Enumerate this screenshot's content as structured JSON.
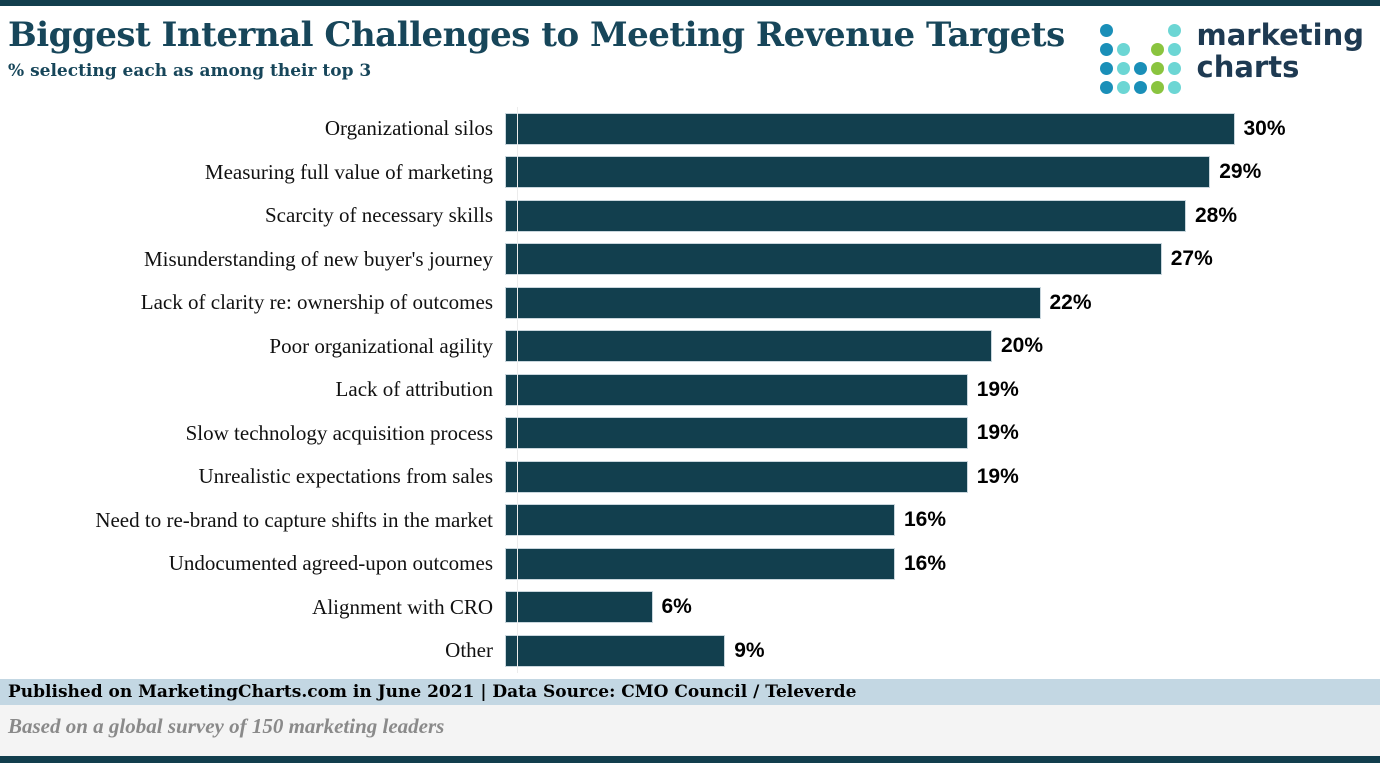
{
  "header": {
    "title": "Biggest Internal Challenges to Meeting Revenue Targets",
    "subtitle": "% selecting each as among their top 3"
  },
  "logo": {
    "line1": "marketing",
    "line2": "charts",
    "dot_colors": {
      "blue": "#1a8fb8",
      "cyan": "#6cd6d4",
      "green": "#8ac43f"
    },
    "dot_grid": [
      [
        "blue",
        "",
        "",
        "",
        "cyan"
      ],
      [
        "blue",
        "cyan",
        "",
        "green",
        "cyan"
      ],
      [
        "blue",
        "cyan",
        "blue",
        "green",
        "cyan"
      ],
      [
        "blue",
        "cyan",
        "blue",
        "green",
        "cyan"
      ]
    ],
    "text_color": "#1e3a52"
  },
  "chart_data": {
    "type": "bar",
    "orientation": "horizontal",
    "title": "Biggest Internal Challenges to Meeting Revenue Targets",
    "subtitle": "% selecting each as among their top 3",
    "categories": [
      "Organizational silos",
      "Measuring full value of marketing",
      "Scarcity of necessary skills",
      "Misunderstanding of new buyer's journey",
      "Lack of clarity re: ownership of outcomes",
      "Poor organizational agility",
      "Lack of attribution",
      "Slow technology acquisition process",
      "Unrealistic expectations from sales",
      "Need to re-brand to capture shifts in the market",
      "Undocumented agreed-upon outcomes",
      "Alignment with CRO",
      "Other"
    ],
    "values": [
      30,
      29,
      28,
      27,
      22,
      20,
      19,
      19,
      19,
      16,
      16,
      6,
      9
    ],
    "value_suffix": "%",
    "xlim": [
      0,
      33
    ],
    "grid": false,
    "legend": false,
    "bar_color": "#123f4e"
  },
  "footer": {
    "published_line": "Published on MarketingCharts.com in June 2021 | Data Source: CMO Council / Televerde",
    "note": "Based on a global survey of 150 marketing leaders"
  },
  "colors": {
    "title": "#17465a",
    "bar": "#123f4e",
    "top_border": "#123e4d",
    "bottom_border": "#123e4d",
    "footer_band_bg": "#c3d7e3",
    "footnote_bg": "#f4f4f4",
    "footnote_text": "#8a8a8a"
  }
}
